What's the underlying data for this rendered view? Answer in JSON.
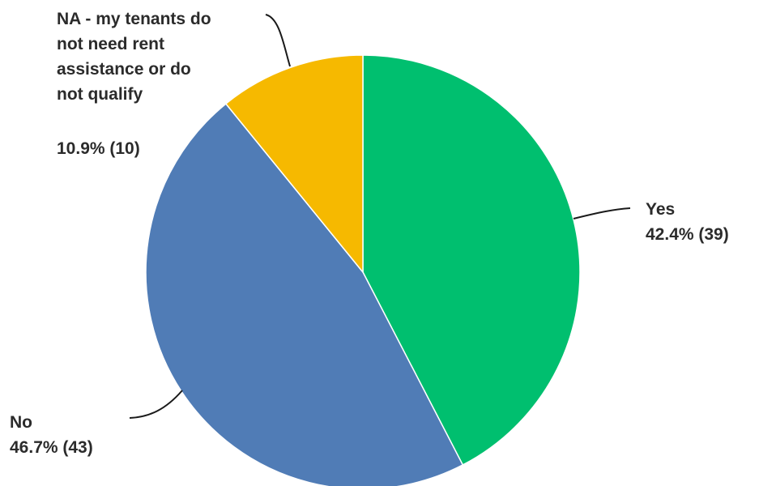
{
  "chart_data": {
    "type": "pie",
    "title": "",
    "slices": [
      {
        "label": "Yes",
        "percent_text": "42.4% (39)",
        "value": 39,
        "percent": 42.4,
        "color": "#00bf6f"
      },
      {
        "label": "No",
        "percent_text": "46.7% (43)",
        "value": 43,
        "percent": 46.7,
        "color": "#507cb6"
      },
      {
        "label_lines": [
          "NA - my tenants do",
          "not need rent",
          "assistance or do",
          "not qualify"
        ],
        "percent_text": "10.9% (10)",
        "value": 10,
        "percent": 10.9,
        "color": "#f6b900"
      }
    ]
  }
}
